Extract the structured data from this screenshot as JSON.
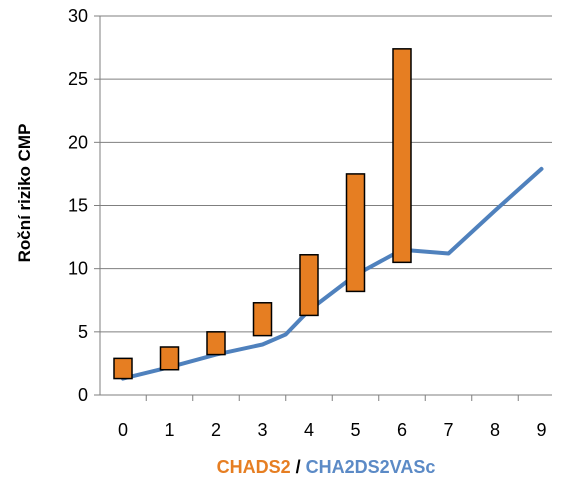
{
  "chart_data": {
    "type": "line",
    "ylabel": "Roční riziko CMP",
    "xlabel_parts": [
      {
        "text": "CHADS2",
        "color": "#e67e22"
      },
      {
        "text": " / ",
        "color": "#000000"
      },
      {
        "text": "CHA2DS2VASc",
        "color": "#5b8ac6"
      }
    ],
    "ylim": [
      0,
      30
    ],
    "y_ticks": [
      0,
      5,
      10,
      15,
      20,
      25,
      30
    ],
    "x_ticks": [
      0,
      1,
      2,
      3,
      4,
      5,
      6,
      7,
      8,
      9
    ],
    "grid": "horizontal",
    "series": [
      {
        "type": "line",
        "color": "#4f81bd",
        "points": [
          {
            "x": 0,
            "y": 1.3
          },
          {
            "x": 1,
            "y": 2.2
          },
          {
            "x": 2,
            "y": 3.2
          },
          {
            "x": 3,
            "y": 4.0
          },
          {
            "x": 3.5,
            "y": 4.8
          },
          {
            "x": 4,
            "y": 6.7
          },
          {
            "x": 5,
            "y": 9.5
          },
          {
            "x": 6,
            "y": 11.5
          },
          {
            "x": 7,
            "y": 11.2
          },
          {
            "x": 8,
            "y": 14.6
          },
          {
            "x": 9,
            "y": 17.9
          }
        ]
      },
      {
        "type": "range-bar",
        "color": "#e67e22",
        "stroke": "#000000",
        "ranges": [
          {
            "x": 0,
            "low": 1.3,
            "high": 2.9
          },
          {
            "x": 1,
            "low": 2.0,
            "high": 3.8
          },
          {
            "x": 2,
            "low": 3.2,
            "high": 5.0
          },
          {
            "x": 3,
            "low": 4.7,
            "high": 7.3
          },
          {
            "x": 4,
            "low": 6.3,
            "high": 11.1
          },
          {
            "x": 5,
            "low": 8.2,
            "high": 17.5
          },
          {
            "x": 6,
            "low": 10.5,
            "high": 27.4
          }
        ]
      }
    ]
  }
}
